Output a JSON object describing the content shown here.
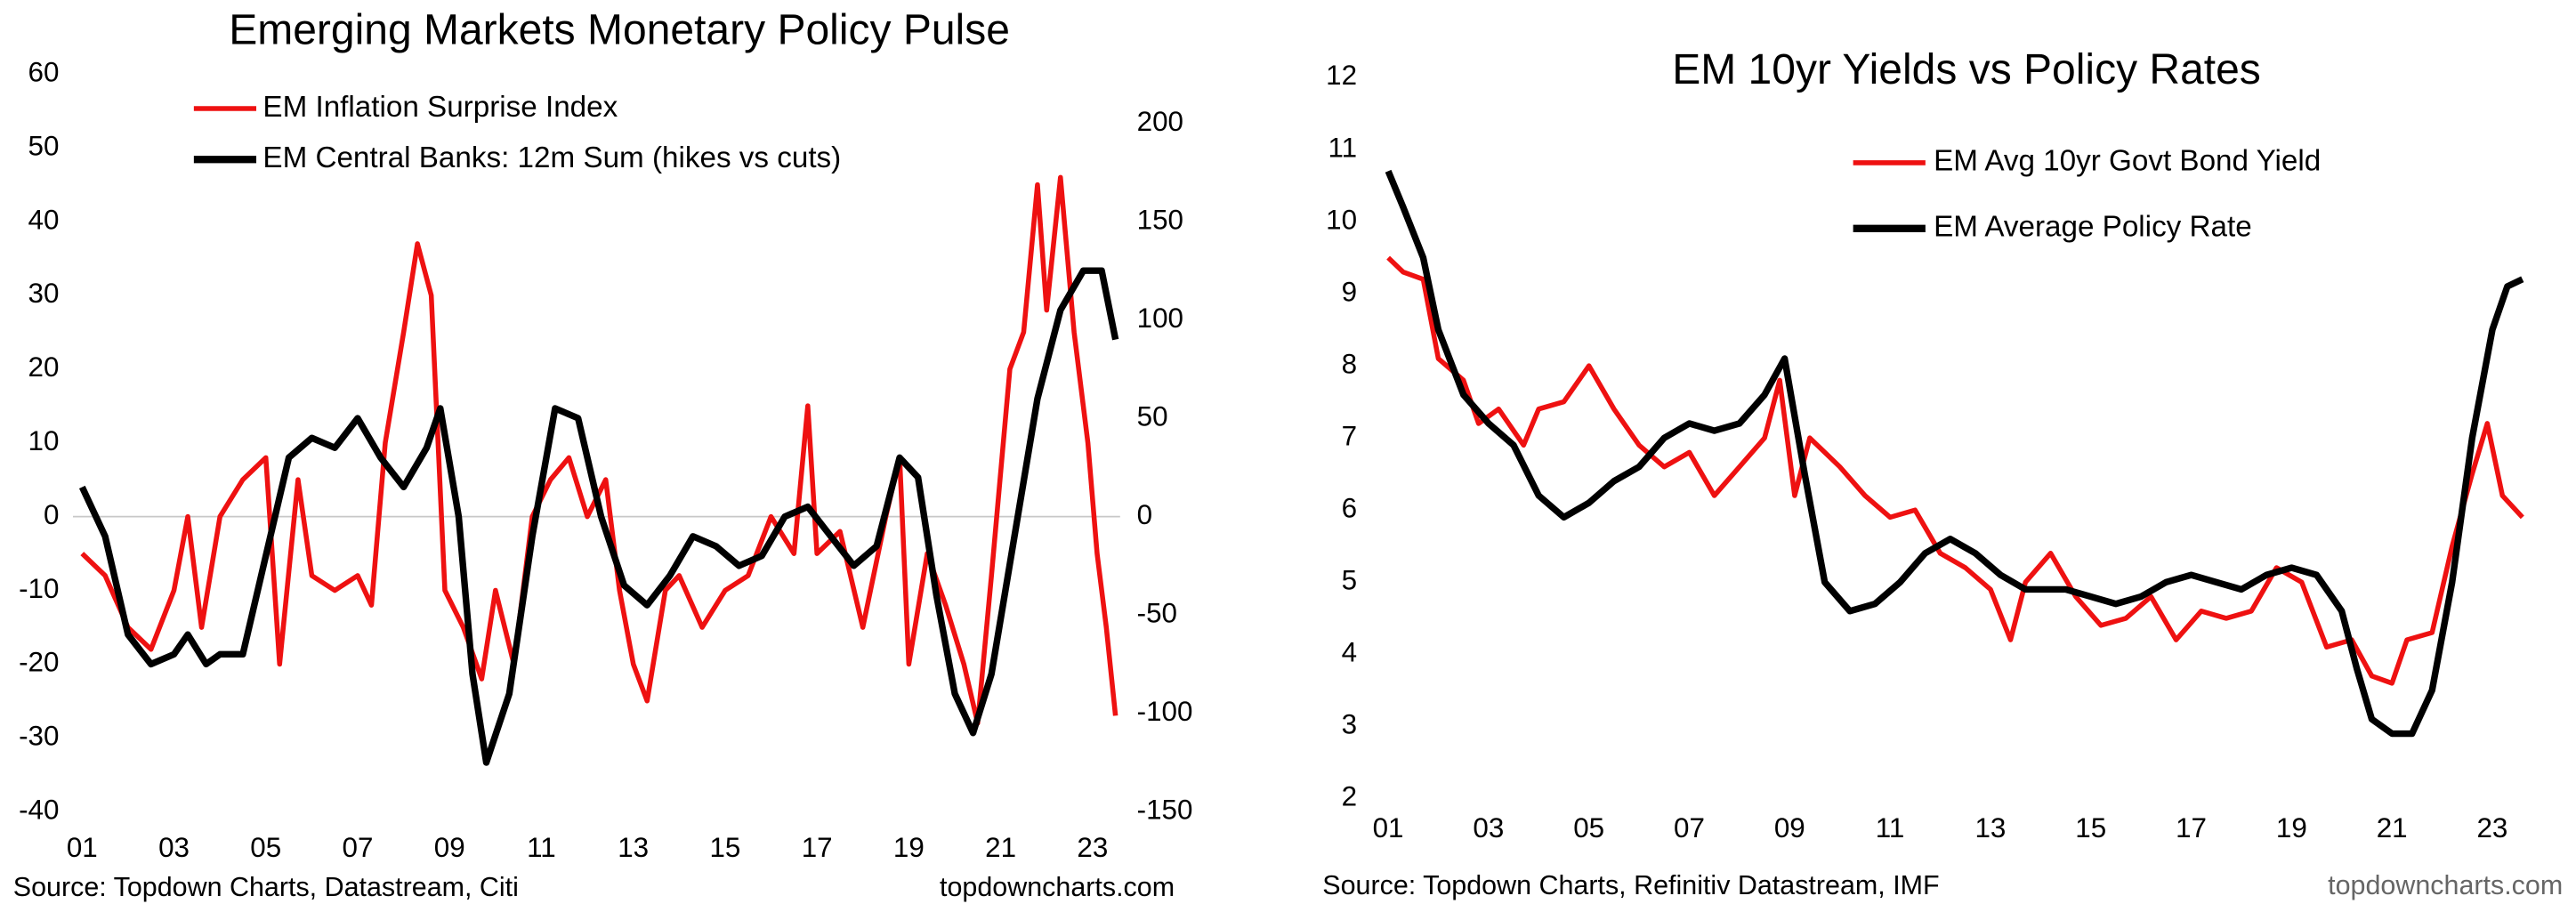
{
  "chart_data": [
    {
      "type": "line",
      "title": "Emerging Markets Monetary Policy Pulse",
      "xlim": [
        2000.8,
        2023.6
      ],
      "xticks": [
        {
          "value": 2001,
          "label": "01"
        },
        {
          "value": 2003,
          "label": "03"
        },
        {
          "value": 2005,
          "label": "05"
        },
        {
          "value": 2007,
          "label": "07"
        },
        {
          "value": 2009,
          "label": "09"
        },
        {
          "value": 2011,
          "label": "11"
        },
        {
          "value": 2013,
          "label": "13"
        },
        {
          "value": 2015,
          "label": "15"
        },
        {
          "value": 2017,
          "label": "17"
        },
        {
          "value": 2019,
          "label": "19"
        },
        {
          "value": 2021,
          "label": "21"
        },
        {
          "value": 2023,
          "label": "23"
        }
      ],
      "ylim": [
        -40,
        60
      ],
      "yticks": [
        -40,
        -30,
        -20,
        -10,
        0,
        10,
        20,
        30,
        40,
        50,
        60
      ],
      "y2lim": [
        -150,
        225
      ],
      "y2ticks": [
        -150,
        -100,
        -50,
        0,
        50,
        100,
        150,
        200
      ],
      "legend": "upper left",
      "grid": false,
      "source": "Source: Topdown Charts, Datastream, Citi",
      "credit": "topdowncharts.com",
      "series": [
        {
          "name": "EM Inflation Surprise Index",
          "color": "#ee1111",
          "x": [
            2001,
            2001.5,
            2002,
            2002.5,
            2003,
            2003.3,
            2003.6,
            2004,
            2004.5,
            2005,
            2005.3,
            2005.7,
            2006,
            2006.5,
            2007,
            2007.3,
            2007.6,
            2008,
            2008.3,
            2008.6,
            2008.9,
            2009.3,
            2009.7,
            2010,
            2010.4,
            2010.8,
            2011.2,
            2011.6,
            2012,
            2012.4,
            2012.7,
            2013,
            2013.3,
            2013.7,
            2014,
            2014.5,
            2015,
            2015.5,
            2016,
            2016.5,
            2016.8,
            2017,
            2017.5,
            2018,
            2018.5,
            2018.8,
            2019,
            2019.4,
            2019.8,
            2020.2,
            2020.5,
            2020.8,
            2021.2,
            2021.5,
            2021.8,
            2022,
            2022.3,
            2022.6,
            2022.9,
            2023.1,
            2023.3,
            2023.5
          ],
          "values": [
            -5,
            -8,
            -15,
            -18,
            -10,
            0,
            -15,
            0,
            5,
            8,
            -20,
            5,
            -8,
            -10,
            -8,
            -12,
            10,
            25,
            37,
            30,
            -10,
            -15,
            -22,
            -10,
            -20,
            0,
            5,
            8,
            0,
            5,
            -10,
            -20,
            -25,
            -10,
            -8,
            -15,
            -10,
            -8,
            0,
            -5,
            15,
            -5,
            -2,
            -15,
            0,
            8,
            -20,
            -5,
            -12,
            -20,
            -28,
            -8,
            20,
            25,
            45,
            28,
            46,
            25,
            10,
            -5,
            -15,
            -27
          ]
        },
        {
          "name": "EM Central Banks: 12m Sum (hikes vs cuts)",
          "color": "#000000",
          "axis": "y2",
          "x": [
            2001,
            2001.5,
            2002,
            2002.5,
            2003,
            2003.3,
            2003.7,
            2004,
            2004.5,
            2005,
            2005.5,
            2006,
            2006.5,
            2007,
            2007.5,
            2008,
            2008.5,
            2008.8,
            2009.2,
            2009.5,
            2009.8,
            2010.3,
            2010.8,
            2011.3,
            2011.8,
            2012.3,
            2012.8,
            2013.3,
            2013.8,
            2014.3,
            2014.8,
            2015.3,
            2015.8,
            2016.3,
            2016.8,
            2017.3,
            2017.8,
            2018.3,
            2018.8,
            2019.2,
            2019.6,
            2020,
            2020.4,
            2020.8,
            2021.3,
            2021.8,
            2022.3,
            2022.8,
            2023.2,
            2023.5
          ],
          "values": [
            15,
            -10,
            -60,
            -75,
            -70,
            -60,
            -75,
            -70,
            -70,
            -20,
            30,
            40,
            35,
            50,
            30,
            15,
            35,
            55,
            0,
            -80,
            -125,
            -90,
            -10,
            55,
            50,
            0,
            -35,
            -45,
            -30,
            -10,
            -15,
            -25,
            -20,
            0,
            5,
            -10,
            -25,
            -15,
            30,
            20,
            -40,
            -90,
            -110,
            -80,
            -10,
            60,
            105,
            125,
            125,
            90
          ]
        }
      ]
    },
    {
      "type": "line",
      "title": "EM 10yr Yields vs Policy Rates",
      "xlim": [
        2000.7,
        2023.8
      ],
      "xticks": [
        {
          "value": 2001,
          "label": "01"
        },
        {
          "value": 2003,
          "label": "03"
        },
        {
          "value": 2005,
          "label": "05"
        },
        {
          "value": 2007,
          "label": "07"
        },
        {
          "value": 2009,
          "label": "09"
        },
        {
          "value": 2011,
          "label": "11"
        },
        {
          "value": 2013,
          "label": "13"
        },
        {
          "value": 2015,
          "label": "15"
        },
        {
          "value": 2017,
          "label": "17"
        },
        {
          "value": 2019,
          "label": "19"
        },
        {
          "value": 2021,
          "label": "21"
        },
        {
          "value": 2023,
          "label": "23"
        }
      ],
      "ylim": [
        2,
        12
      ],
      "yticks": [
        2,
        3,
        4,
        5,
        6,
        7,
        8,
        9,
        10,
        11,
        12
      ],
      "legend": "upper right",
      "grid": false,
      "source": "Source: Topdown Charts, Refinitiv Datastream, IMF",
      "credit": "topdowncharts.com",
      "series": [
        {
          "name": "EM Avg 10yr Govt Bond Yield",
          "color": "#ee1111",
          "x": [
            2001,
            2001.3,
            2001.7,
            2002,
            2002.5,
            2002.8,
            2003.2,
            2003.7,
            2004,
            2004.5,
            2005,
            2005.5,
            2006,
            2006.5,
            2007,
            2007.5,
            2008,
            2008.5,
            2008.8,
            2009.1,
            2009.4,
            2010,
            2010.5,
            2011,
            2011.5,
            2012,
            2012.5,
            2013,
            2013.4,
            2013.7,
            2014.2,
            2014.7,
            2015.2,
            2015.7,
            2016.2,
            2016.7,
            2017.2,
            2017.7,
            2018.2,
            2018.7,
            2019.2,
            2019.7,
            2020.2,
            2020.6,
            2021,
            2021.3,
            2021.8,
            2022.2,
            2022.6,
            2022.9,
            2023.2,
            2023.6
          ],
          "values": [
            9.5,
            9.3,
            9.2,
            8.1,
            7.8,
            7.2,
            7.4,
            6.9,
            7.4,
            7.5,
            8.0,
            7.4,
            6.9,
            6.6,
            6.8,
            6.2,
            6.6,
            7.0,
            7.8,
            6.2,
            7.0,
            6.6,
            6.2,
            5.9,
            6.0,
            5.4,
            5.2,
            4.9,
            4.2,
            5.0,
            5.4,
            4.8,
            4.4,
            4.5,
            4.8,
            4.2,
            4.6,
            4.5,
            4.6,
            5.2,
            5.0,
            4.1,
            4.2,
            3.7,
            3.6,
            4.2,
            4.3,
            5.5,
            6.5,
            7.2,
            6.2,
            5.9
          ]
        },
        {
          "name": "EM Average Policy Rate",
          "color": "#000000",
          "x": [
            2001,
            2001.3,
            2001.7,
            2002,
            2002.5,
            2003,
            2003.5,
            2004,
            2004.5,
            2005,
            2005.5,
            2006,
            2006.5,
            2007,
            2007.5,
            2008,
            2008.5,
            2008.9,
            2009.3,
            2009.7,
            2010.2,
            2010.7,
            2011.2,
            2011.7,
            2012.2,
            2012.7,
            2013.2,
            2013.7,
            2014.5,
            2015,
            2015.5,
            2016,
            2016.5,
            2017,
            2017.5,
            2018,
            2018.5,
            2019,
            2019.5,
            2020,
            2020.3,
            2020.6,
            2021,
            2021.4,
            2021.8,
            2022.2,
            2022.6,
            2023,
            2023.3,
            2023.6
          ],
          "values": [
            10.7,
            10.2,
            9.5,
            8.5,
            7.6,
            7.2,
            6.9,
            6.2,
            5.9,
            6.1,
            6.4,
            6.6,
            7.0,
            7.2,
            7.1,
            7.2,
            7.6,
            8.1,
            6.5,
            5.0,
            4.6,
            4.7,
            5.0,
            5.4,
            5.6,
            5.4,
            5.1,
            4.9,
            4.9,
            4.8,
            4.7,
            4.8,
            5.0,
            5.1,
            5.0,
            4.9,
            5.1,
            5.2,
            5.1,
            4.6,
            3.8,
            3.1,
            2.9,
            2.9,
            3.5,
            5.0,
            7.0,
            8.5,
            9.1,
            9.2
          ]
        }
      ]
    }
  ]
}
